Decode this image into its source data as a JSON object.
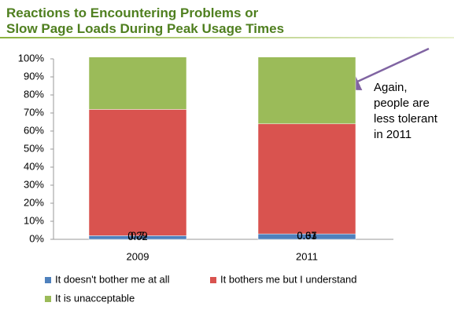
{
  "chart_data": {
    "type": "stacked_bar",
    "title": [
      "Reactions to Encountering Problems or",
      "Slow Page Loads During Peak Usage Times"
    ],
    "categories": [
      "2009",
      "2011"
    ],
    "series": [
      {
        "name": "It doesn't bother me at all",
        "color": "#4f81bd",
        "values": [
          0.02,
          0.03
        ]
      },
      {
        "name": "It bothers me but I understand",
        "color": "#d9534f",
        "values": [
          0.7,
          0.61
        ]
      },
      {
        "name": "It is unacceptable",
        "color": "#9bbb59",
        "values": [
          0.29,
          0.37
        ]
      }
    ],
    "ylim": [
      0,
      1
    ],
    "yticks": [
      {
        "value": 0,
        "label": "0%"
      },
      {
        "value": 0.1,
        "label": "10%"
      },
      {
        "value": 0.2,
        "label": "20%"
      },
      {
        "value": 0.3,
        "label": "30%"
      },
      {
        "value": 0.4,
        "label": "40%"
      },
      {
        "value": 0.5,
        "label": "50%"
      },
      {
        "value": 0.6,
        "label": "60%"
      },
      {
        "value": 0.7,
        "label": "70%"
      },
      {
        "value": 0.8,
        "label": "80%"
      },
      {
        "value": 0.9,
        "label": "90%"
      },
      {
        "value": 1,
        "label": "100%"
      }
    ],
    "annotation": [
      "Again,",
      "people are",
      "less tolerant",
      "in 2011"
    ]
  }
}
